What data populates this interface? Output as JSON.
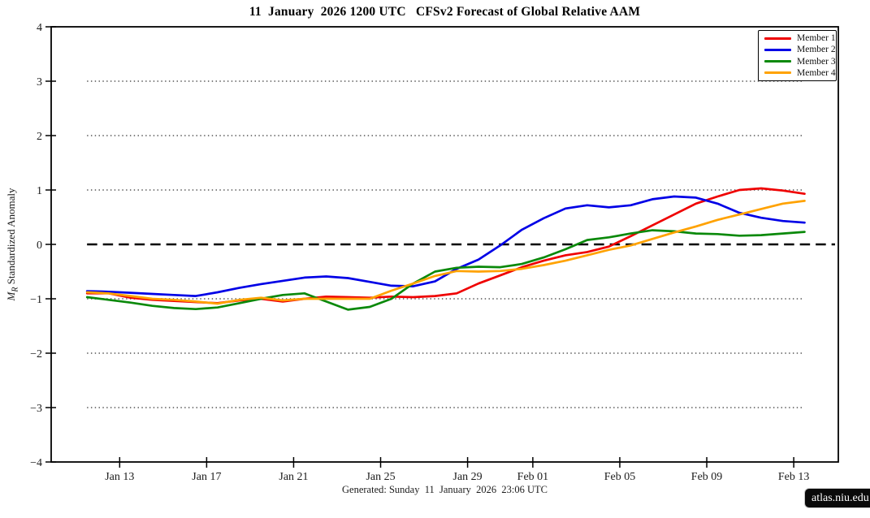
{
  "chart_data": {
    "type": "line",
    "title": "11  January  2026 1200 UTC   CFSv2 Forecast of Global Relative AAM",
    "ylabel": {
      "math": "M",
      "sub": "R",
      "rest": " Standardized Anomaly"
    },
    "ylim": [
      -4,
      4
    ],
    "y_ticks": [
      {
        "v": 4,
        "label": "4"
      },
      {
        "v": 3,
        "label": "3"
      },
      {
        "v": 2,
        "label": "2"
      },
      {
        "v": 1,
        "label": "1"
      },
      {
        "v": 0,
        "label": "0"
      },
      {
        "v": -1,
        "label": "−1"
      },
      {
        "v": -2,
        "label": "−2"
      },
      {
        "v": -3,
        "label": "−3"
      },
      {
        "v": -4,
        "label": "−4"
      }
    ],
    "grid_values": [
      3,
      2,
      1,
      -1,
      -2,
      -3
    ],
    "grid_style": "dotted",
    "grid_color": "#7d7d7d",
    "zero_line_value": 0,
    "zero_line_style": "dashed",
    "zero_line_color": "#000000",
    "legend_position": "top-right",
    "x_range_days": [
      -1.65,
      34.55
    ],
    "grid_day_span": [
      0,
      32.93
    ],
    "zero_day_span": [
      0,
      34.4
    ],
    "x_ticks": [
      {
        "day": 1.5,
        "label": "Jan 13"
      },
      {
        "day": 5.5,
        "label": "Jan 17"
      },
      {
        "day": 9.5,
        "label": "Jan 21"
      },
      {
        "day": 13.5,
        "label": "Jan 25"
      },
      {
        "day": 17.5,
        "label": "Jan 29"
      },
      {
        "day": 20.5,
        "label": "Feb 01"
      },
      {
        "day": 24.5,
        "label": "Feb 05"
      },
      {
        "day": 28.5,
        "label": "Feb 09"
      },
      {
        "day": 32.5,
        "label": "Feb 13"
      }
    ],
    "x_days": [
      0,
      1,
      2,
      3,
      4,
      5,
      6,
      7,
      8,
      9,
      10,
      11,
      12,
      13,
      14,
      15,
      16,
      17,
      18,
      19,
      20,
      21,
      22,
      23,
      24,
      25,
      26,
      27,
      28,
      29,
      30,
      31,
      32,
      33
    ],
    "series": [
      {
        "name": "Member 1",
        "color": "#ef0000",
        "values": [
          -0.9,
          -0.9,
          -0.98,
          -1.02,
          -1.04,
          -1.06,
          -1.08,
          -1.03,
          -1.0,
          -1.05,
          -1.0,
          -0.96,
          -0.97,
          -0.98,
          -0.96,
          -0.97,
          -0.95,
          -0.9,
          -0.72,
          -0.57,
          -0.42,
          -0.3,
          -0.2,
          -0.14,
          -0.04,
          0.15,
          0.35,
          0.55,
          0.75,
          0.88,
          1.0,
          1.03,
          0.99,
          0.93
        ]
      },
      {
        "name": "Member 2",
        "color": "#0000e6",
        "values": [
          -0.86,
          -0.87,
          -0.89,
          -0.91,
          -0.93,
          -0.95,
          -0.88,
          -0.8,
          -0.73,
          -0.67,
          -0.61,
          -0.59,
          -0.62,
          -0.69,
          -0.76,
          -0.77,
          -0.68,
          -0.45,
          -0.28,
          -0.02,
          0.27,
          0.48,
          0.66,
          0.72,
          0.68,
          0.72,
          0.83,
          0.88,
          0.86,
          0.75,
          0.58,
          0.49,
          0.43,
          0.4
        ]
      },
      {
        "name": "Member 3",
        "color": "#0a890a",
        "values": [
          -0.97,
          -1.02,
          -1.07,
          -1.13,
          -1.17,
          -1.19,
          -1.16,
          -1.08,
          -1.0,
          -0.93,
          -0.9,
          -1.05,
          -1.2,
          -1.15,
          -1.0,
          -0.72,
          -0.5,
          -0.43,
          -0.41,
          -0.42,
          -0.36,
          -0.24,
          -0.09,
          0.08,
          0.13,
          0.2,
          0.26,
          0.24,
          0.2,
          0.19,
          0.16,
          0.17,
          0.2,
          0.23
        ]
      },
      {
        "name": "Member 4",
        "color": "#ffa200",
        "values": [
          -0.88,
          -0.9,
          -0.95,
          -1.0,
          -1.02,
          -1.05,
          -1.09,
          -1.02,
          -0.98,
          -1.03,
          -1.0,
          -1.0,
          -1.0,
          -1.0,
          -0.85,
          -0.72,
          -0.58,
          -0.49,
          -0.5,
          -0.49,
          -0.45,
          -0.38,
          -0.3,
          -0.2,
          -0.1,
          -0.02,
          0.1,
          0.22,
          0.33,
          0.45,
          0.55,
          0.65,
          0.75,
          0.8
        ]
      }
    ]
  },
  "footer": {
    "generated": "Generated: Sunday  11  January  2026  23:06 UTC",
    "badge": "atlas.niu.edu"
  }
}
